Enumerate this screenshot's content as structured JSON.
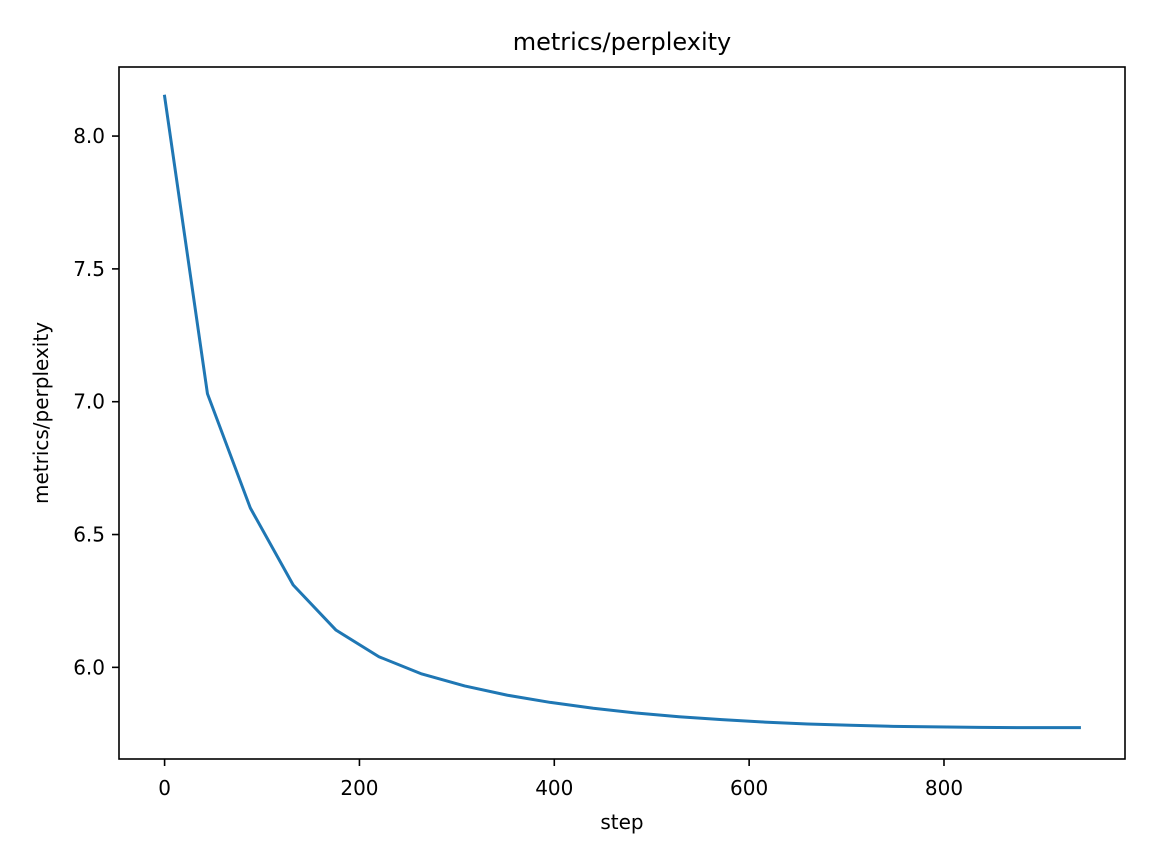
{
  "chart_data": {
    "type": "line",
    "title": "metrics/perplexity",
    "xlabel": "step",
    "ylabel": "metrics/perplexity",
    "xlim": [
      -46.8,
      985.8
    ],
    "ylim": [
      5.655,
      8.26
    ],
    "xticks": [
      {
        "value": 0,
        "label": "0"
      },
      {
        "value": 200,
        "label": "200"
      },
      {
        "value": 400,
        "label": "400"
      },
      {
        "value": 600,
        "label": "600"
      },
      {
        "value": 800,
        "label": "800"
      }
    ],
    "yticks": [
      {
        "value": 6.0,
        "label": "6.0"
      },
      {
        "value": 6.5,
        "label": "6.5"
      },
      {
        "value": 7.0,
        "label": "7.0"
      },
      {
        "value": 7.5,
        "label": "7.5"
      },
      {
        "value": 8.0,
        "label": "8.0"
      }
    ],
    "grid": false,
    "series": [
      {
        "color": "#1f77b4",
        "x": [
          0,
          44,
          88,
          132,
          176,
          220,
          264,
          308,
          352,
          396,
          440,
          484,
          528,
          572,
          616,
          660,
          704,
          748,
          792,
          836,
          880,
          939
        ],
        "y": [
          8.15,
          7.03,
          6.6,
          6.31,
          6.14,
          6.04,
          5.975,
          5.93,
          5.895,
          5.868,
          5.846,
          5.828,
          5.814,
          5.803,
          5.794,
          5.787,
          5.782,
          5.778,
          5.776,
          5.774,
          5.773,
          5.773
        ]
      }
    ]
  }
}
